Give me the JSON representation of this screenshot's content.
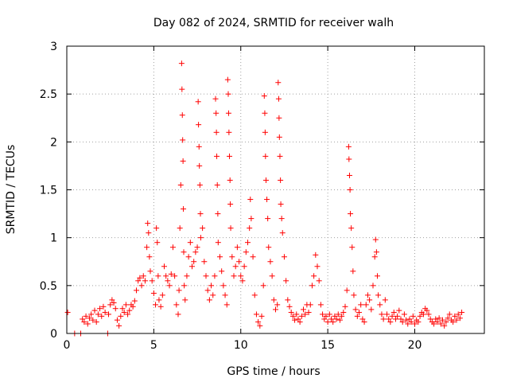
{
  "chart_data": {
    "type": "scatter",
    "title": "Day 082 of 2024, SRMTID for receiver walh",
    "xlabel": "GPS time / hours",
    "ylabel": "SRMTID / TECUs",
    "xlim": [
      0,
      24
    ],
    "ylim": [
      0,
      3
    ],
    "xticks": [
      0,
      5,
      10,
      15,
      20
    ],
    "yticks": [
      0,
      0.5,
      1,
      1.5,
      2,
      2.5,
      3
    ],
    "xtick_labels": [
      "0",
      "5",
      "10",
      "15",
      "20"
    ],
    "ytick_labels": [
      "0",
      "0.5",
      "1",
      "1.5",
      "2",
      "2.5",
      "3"
    ],
    "grid": true,
    "marker": "+",
    "color": "#ff0000",
    "series": [
      {
        "name": "SRMTID",
        "points": [
          [
            0.05,
            0.22
          ],
          [
            0.45,
            0.0
          ],
          [
            0.8,
            0.0
          ],
          [
            0.9,
            0.15
          ],
          [
            1.0,
            0.12
          ],
          [
            1.1,
            0.18
          ],
          [
            1.2,
            0.1
          ],
          [
            1.3,
            0.16
          ],
          [
            1.4,
            0.2
          ],
          [
            1.5,
            0.14
          ],
          [
            1.6,
            0.24
          ],
          [
            1.7,
            0.12
          ],
          [
            1.8,
            0.2
          ],
          [
            1.9,
            0.26
          ],
          [
            2.0,
            0.18
          ],
          [
            2.1,
            0.28
          ],
          [
            2.2,
            0.22
          ],
          [
            2.35,
            0.0
          ],
          [
            2.4,
            0.2
          ],
          [
            2.5,
            0.3
          ],
          [
            2.6,
            0.35
          ],
          [
            2.7,
            0.32
          ],
          [
            2.8,
            0.26
          ],
          [
            2.9,
            0.14
          ],
          [
            3.0,
            0.08
          ],
          [
            3.1,
            0.18
          ],
          [
            3.2,
            0.26
          ],
          [
            3.3,
            0.22
          ],
          [
            3.4,
            0.3
          ],
          [
            3.5,
            0.2
          ],
          [
            3.6,
            0.24
          ],
          [
            3.7,
            0.3
          ],
          [
            3.8,
            0.28
          ],
          [
            3.9,
            0.34
          ],
          [
            4.0,
            0.45
          ],
          [
            4.1,
            0.55
          ],
          [
            4.2,
            0.58
          ],
          [
            4.3,
            0.5
          ],
          [
            4.4,
            0.6
          ],
          [
            4.5,
            0.55
          ],
          [
            4.6,
            0.9
          ],
          [
            4.65,
            1.15
          ],
          [
            4.7,
            1.05
          ],
          [
            4.75,
            0.8
          ],
          [
            4.8,
            0.65
          ],
          [
            4.9,
            0.55
          ],
          [
            5.0,
            0.42
          ],
          [
            5.1,
            0.3
          ],
          [
            5.15,
            1.1
          ],
          [
            5.2,
            0.95
          ],
          [
            5.25,
            0.6
          ],
          [
            5.3,
            0.35
          ],
          [
            5.4,
            0.28
          ],
          [
            5.5,
            0.4
          ],
          [
            5.6,
            0.7
          ],
          [
            5.7,
            0.6
          ],
          [
            5.8,
            0.55
          ],
          [
            5.9,
            0.5
          ],
          [
            6.0,
            0.62
          ],
          [
            6.1,
            0.9
          ],
          [
            6.2,
            0.6
          ],
          [
            6.3,
            0.3
          ],
          [
            6.4,
            0.2
          ],
          [
            6.45,
            0.45
          ],
          [
            6.5,
            1.1
          ],
          [
            6.55,
            1.55
          ],
          [
            6.6,
            2.82
          ],
          [
            6.62,
            2.55
          ],
          [
            6.64,
            2.28
          ],
          [
            6.66,
            2.02
          ],
          [
            6.68,
            1.8
          ],
          [
            6.7,
            1.3
          ],
          [
            6.72,
            0.85
          ],
          [
            6.75,
            0.5
          ],
          [
            6.8,
            0.35
          ],
          [
            6.9,
            0.6
          ],
          [
            7.0,
            0.8
          ],
          [
            7.1,
            0.95
          ],
          [
            7.2,
            0.7
          ],
          [
            7.3,
            0.75
          ],
          [
            7.4,
            0.85
          ],
          [
            7.5,
            0.9
          ],
          [
            7.55,
            2.42
          ],
          [
            7.57,
            2.18
          ],
          [
            7.6,
            1.95
          ],
          [
            7.62,
            1.75
          ],
          [
            7.65,
            1.55
          ],
          [
            7.68,
            1.25
          ],
          [
            7.7,
            1.0
          ],
          [
            7.8,
            1.1
          ],
          [
            7.9,
            0.75
          ],
          [
            8.0,
            0.6
          ],
          [
            8.1,
            0.45
          ],
          [
            8.2,
            0.35
          ],
          [
            8.3,
            0.5
          ],
          [
            8.4,
            0.4
          ],
          [
            8.5,
            0.6
          ],
          [
            8.55,
            2.45
          ],
          [
            8.58,
            2.3
          ],
          [
            8.6,
            2.1
          ],
          [
            8.62,
            1.85
          ],
          [
            8.65,
            1.55
          ],
          [
            8.68,
            1.25
          ],
          [
            8.7,
            0.95
          ],
          [
            8.8,
            0.8
          ],
          [
            8.9,
            0.65
          ],
          [
            9.0,
            0.5
          ],
          [
            9.1,
            0.4
          ],
          [
            9.2,
            0.3
          ],
          [
            9.25,
            2.65
          ],
          [
            9.28,
            2.5
          ],
          [
            9.3,
            2.3
          ],
          [
            9.32,
            2.1
          ],
          [
            9.35,
            1.85
          ],
          [
            9.38,
            1.6
          ],
          [
            9.4,
            1.35
          ],
          [
            9.42,
            1.1
          ],
          [
            9.5,
            0.8
          ],
          [
            9.6,
            0.6
          ],
          [
            9.7,
            0.7
          ],
          [
            9.8,
            0.9
          ],
          [
            9.9,
            0.75
          ],
          [
            10.0,
            0.6
          ],
          [
            10.1,
            0.55
          ],
          [
            10.2,
            0.7
          ],
          [
            10.3,
            0.85
          ],
          [
            10.4,
            0.95
          ],
          [
            10.5,
            1.1
          ],
          [
            10.55,
            1.4
          ],
          [
            10.6,
            1.2
          ],
          [
            10.7,
            0.8
          ],
          [
            10.8,
            0.4
          ],
          [
            10.9,
            0.2
          ],
          [
            11.0,
            0.12
          ],
          [
            11.1,
            0.08
          ],
          [
            11.2,
            0.18
          ],
          [
            11.3,
            0.5
          ],
          [
            11.35,
            2.48
          ],
          [
            11.38,
            2.3
          ],
          [
            11.4,
            2.1
          ],
          [
            11.42,
            1.85
          ],
          [
            11.45,
            1.6
          ],
          [
            11.5,
            1.4
          ],
          [
            11.55,
            1.2
          ],
          [
            11.6,
            0.9
          ],
          [
            11.7,
            0.75
          ],
          [
            11.8,
            0.6
          ],
          [
            11.9,
            0.35
          ],
          [
            12.0,
            0.25
          ],
          [
            12.1,
            0.3
          ],
          [
            12.15,
            2.62
          ],
          [
            12.18,
            2.45
          ],
          [
            12.2,
            2.25
          ],
          [
            12.22,
            2.05
          ],
          [
            12.25,
            1.85
          ],
          [
            12.28,
            1.6
          ],
          [
            12.3,
            1.35
          ],
          [
            12.35,
            1.2
          ],
          [
            12.4,
            1.05
          ],
          [
            12.5,
            0.8
          ],
          [
            12.6,
            0.55
          ],
          [
            12.7,
            0.35
          ],
          [
            12.8,
            0.28
          ],
          [
            12.9,
            0.22
          ],
          [
            13.0,
            0.18
          ],
          [
            13.1,
            0.14
          ],
          [
            13.2,
            0.2
          ],
          [
            13.3,
            0.15
          ],
          [
            13.4,
            0.12
          ],
          [
            13.5,
            0.18
          ],
          [
            13.6,
            0.25
          ],
          [
            13.7,
            0.2
          ],
          [
            13.8,
            0.3
          ],
          [
            13.9,
            0.22
          ],
          [
            14.0,
            0.3
          ],
          [
            14.1,
            0.5
          ],
          [
            14.2,
            0.6
          ],
          [
            14.3,
            0.82
          ],
          [
            14.4,
            0.7
          ],
          [
            14.5,
            0.55
          ],
          [
            14.6,
            0.3
          ],
          [
            14.7,
            0.2
          ],
          [
            14.8,
            0.15
          ],
          [
            14.9,
            0.18
          ],
          [
            15.0,
            0.12
          ],
          [
            15.1,
            0.2
          ],
          [
            15.2,
            0.15
          ],
          [
            15.3,
            0.12
          ],
          [
            15.4,
            0.18
          ],
          [
            15.5,
            0.15
          ],
          [
            15.6,
            0.2
          ],
          [
            15.7,
            0.14
          ],
          [
            15.8,
            0.18
          ],
          [
            15.9,
            0.22
          ],
          [
            16.0,
            0.28
          ],
          [
            16.1,
            0.45
          ],
          [
            16.2,
            1.95
          ],
          [
            16.22,
            1.82
          ],
          [
            16.25,
            1.65
          ],
          [
            16.28,
            1.5
          ],
          [
            16.3,
            1.25
          ],
          [
            16.35,
            1.1
          ],
          [
            16.4,
            0.9
          ],
          [
            16.45,
            0.65
          ],
          [
            16.5,
            0.4
          ],
          [
            16.6,
            0.25
          ],
          [
            16.7,
            0.18
          ],
          [
            16.8,
            0.22
          ],
          [
            16.9,
            0.3
          ],
          [
            17.0,
            0.15
          ],
          [
            17.1,
            0.12
          ],
          [
            17.2,
            0.3
          ],
          [
            17.3,
            0.4
          ],
          [
            17.4,
            0.35
          ],
          [
            17.5,
            0.25
          ],
          [
            17.6,
            0.5
          ],
          [
            17.7,
            0.8
          ],
          [
            17.75,
            0.98
          ],
          [
            17.8,
            0.85
          ],
          [
            17.85,
            0.6
          ],
          [
            17.9,
            0.4
          ],
          [
            18.0,
            0.3
          ],
          [
            18.1,
            0.2
          ],
          [
            18.2,
            0.15
          ],
          [
            18.3,
            0.35
          ],
          [
            18.4,
            0.2
          ],
          [
            18.5,
            0.15
          ],
          [
            18.6,
            0.12
          ],
          [
            18.7,
            0.18
          ],
          [
            18.8,
            0.22
          ],
          [
            18.9,
            0.15
          ],
          [
            19.0,
            0.18
          ],
          [
            19.1,
            0.24
          ],
          [
            19.2,
            0.15
          ],
          [
            19.3,
            0.12
          ],
          [
            19.4,
            0.2
          ],
          [
            19.5,
            0.14
          ],
          [
            19.6,
            0.1
          ],
          [
            19.7,
            0.15
          ],
          [
            19.8,
            0.12
          ],
          [
            19.9,
            0.18
          ],
          [
            20.0,
            0.1
          ],
          [
            20.1,
            0.14
          ],
          [
            20.2,
            0.12
          ],
          [
            20.3,
            0.18
          ],
          [
            20.4,
            0.22
          ],
          [
            20.5,
            0.2
          ],
          [
            20.6,
            0.26
          ],
          [
            20.7,
            0.24
          ],
          [
            20.8,
            0.2
          ],
          [
            20.9,
            0.15
          ],
          [
            21.0,
            0.12
          ],
          [
            21.1,
            0.1
          ],
          [
            21.2,
            0.15
          ],
          [
            21.3,
            0.12
          ],
          [
            21.4,
            0.16
          ],
          [
            21.5,
            0.1
          ],
          [
            21.6,
            0.14
          ],
          [
            21.7,
            0.08
          ],
          [
            21.8,
            0.12
          ],
          [
            21.9,
            0.16
          ],
          [
            22.0,
            0.2
          ],
          [
            22.1,
            0.14
          ],
          [
            22.2,
            0.12
          ],
          [
            22.3,
            0.18
          ],
          [
            22.4,
            0.14
          ],
          [
            22.5,
            0.2
          ],
          [
            22.6,
            0.16
          ],
          [
            22.7,
            0.22
          ]
        ]
      }
    ]
  }
}
